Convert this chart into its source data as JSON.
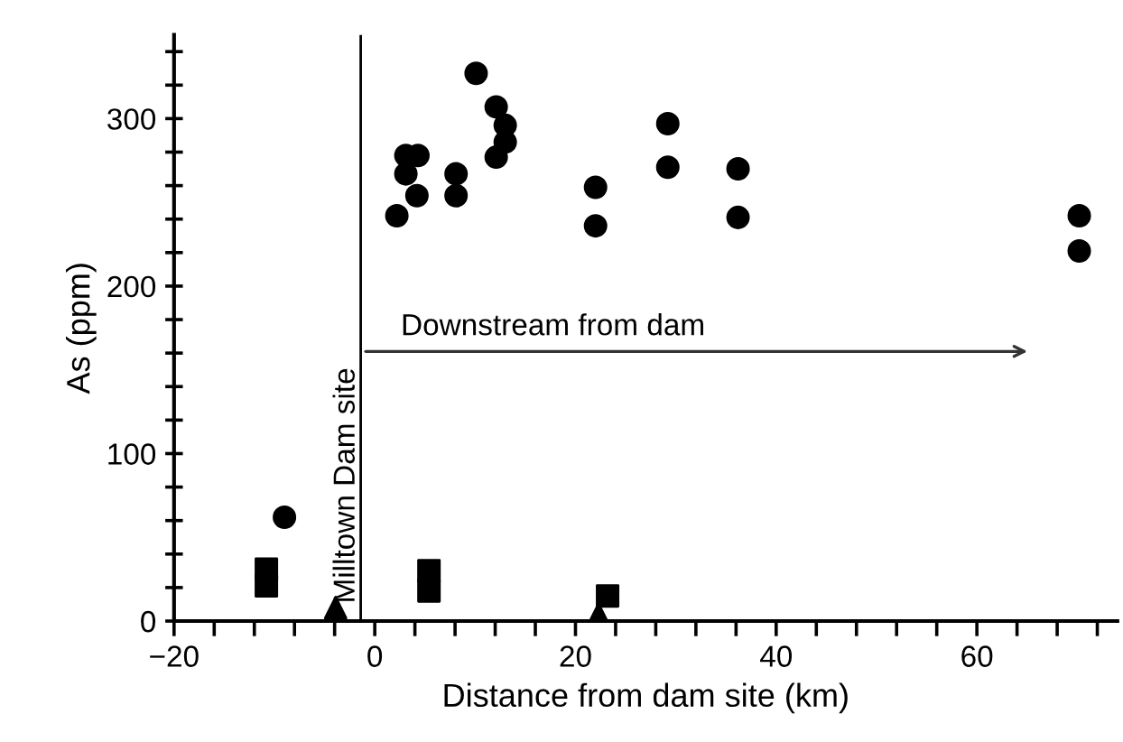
{
  "chart_data": {
    "type": "scatter",
    "xlabel": "Distance from dam site (km)",
    "ylabel": "As (ppm)",
    "xlim": [
      -20,
      74
    ],
    "ylim": [
      0,
      350
    ],
    "xticks": [
      -20,
      {
        "value": -16,
        "label": null
      },
      {
        "value": -12,
        "label": null
      },
      {
        "value": -8,
        "label": null
      },
      {
        "value": -4,
        "label": null
      },
      0,
      {
        "value": 4,
        "label": null
      },
      {
        "value": 8,
        "label": null
      },
      {
        "value": 12,
        "label": null
      },
      {
        "value": 16,
        "label": null
      },
      20,
      {
        "value": 24,
        "label": null
      },
      {
        "value": 28,
        "label": null
      },
      {
        "value": 32,
        "label": null
      },
      {
        "value": 36,
        "label": null
      },
      40,
      {
        "value": 44,
        "label": null
      },
      {
        "value": 48,
        "label": null
      },
      {
        "value": 52,
        "label": null
      },
      {
        "value": 56,
        "label": null
      },
      60,
      {
        "value": 64,
        "label": null
      },
      {
        "value": 68,
        "label": null
      },
      {
        "value": 72,
        "label": null
      }
    ],
    "yticks": [
      0,
      {
        "value": 20,
        "label": null
      },
      {
        "value": 40,
        "label": null
      },
      {
        "value": 60,
        "label": null
      },
      {
        "value": 80,
        "label": null
      },
      100,
      {
        "value": 120,
        "label": null
      },
      {
        "value": 140,
        "label": null
      },
      {
        "value": 160,
        "label": null
      },
      {
        "value": 180,
        "label": null
      },
      200,
      {
        "value": 220,
        "label": null
      },
      {
        "value": 240,
        "label": null
      },
      {
        "value": 260,
        "label": null
      },
      {
        "value": 280,
        "label": null
      },
      300,
      {
        "value": 320,
        "label": null
      },
      {
        "value": 340,
        "label": null
      }
    ],
    "grid": false,
    "legend": false,
    "series": [
      {
        "marker": "circle",
        "color": "#000000",
        "x": [
          -9.0,
          2.2,
          3.1,
          3.1,
          4.3,
          4.2,
          8.1,
          8.1,
          10.1,
          12.1,
          13.0,
          13.0,
          12.1,
          22.0,
          22.0,
          29.2,
          29.2,
          36.2,
          36.2,
          70.2,
          70.2
        ],
        "values": [
          62,
          242,
          267,
          278,
          278,
          254,
          267,
          254,
          327,
          307,
          296,
          286,
          277,
          259,
          236,
          297,
          271,
          270,
          241,
          242,
          221
        ]
      },
      {
        "marker": "square",
        "color": "#000000",
        "x": [
          -10.8,
          -10.8,
          5.4,
          5.4,
          23.2
        ],
        "values": [
          31,
          21,
          30,
          18,
          15
        ]
      },
      {
        "marker": "triangle",
        "color": "#000000",
        "x": [
          -3.9,
          22.3
        ],
        "values": [
          8,
          4
        ]
      }
    ],
    "ref_lines": [
      {
        "axis": "x",
        "value": -1.4,
        "label": "Milltown Dam site",
        "color": "#000000"
      }
    ],
    "annotations": [
      "Downstream from dam"
    ]
  }
}
